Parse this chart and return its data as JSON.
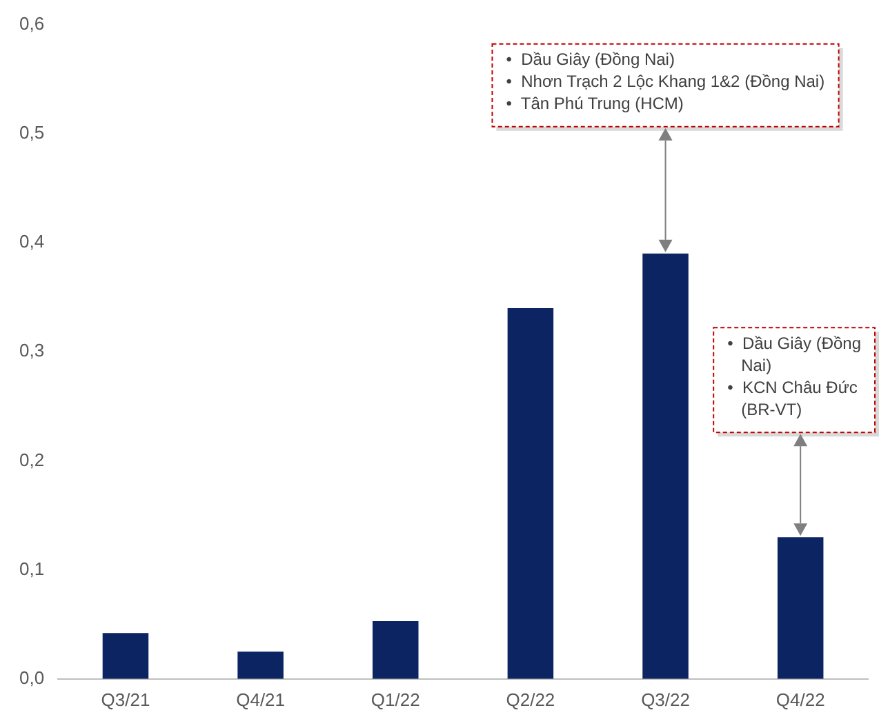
{
  "chart_data": {
    "type": "bar",
    "categories": [
      "Q3/21",
      "Q4/21",
      "Q1/22",
      "Q2/22",
      "Q3/22",
      "Q4/22"
    ],
    "values": [
      0.042,
      0.025,
      0.053,
      0.34,
      0.39,
      0.13
    ],
    "color": "#0c2461",
    "ylim": [
      0,
      0.6
    ],
    "yticks": [
      {
        "value": 0,
        "label": "0,0"
      },
      {
        "value": 0.1,
        "label": "0,1"
      },
      {
        "value": 0.2,
        "label": "0,2"
      },
      {
        "value": 0.3,
        "label": "0,3"
      },
      {
        "value": 0.4,
        "label": "0,4"
      },
      {
        "value": 0.5,
        "label": "0,5"
      },
      {
        "value": 0.6,
        "label": "0,6"
      }
    ],
    "grid": false,
    "legend": false,
    "annotations": [
      "•  Dầu Giây (Đồng Nai)\n•  Nhơn Trạch 2 Lộc Khang 1&2 (Đồng Nai)\n•  Tân Phú Trung (HCM)",
      "•  Dầu Giây (Đồng Nai)\n•  KCN Châu Đức (BR-VT)"
    ]
  }
}
